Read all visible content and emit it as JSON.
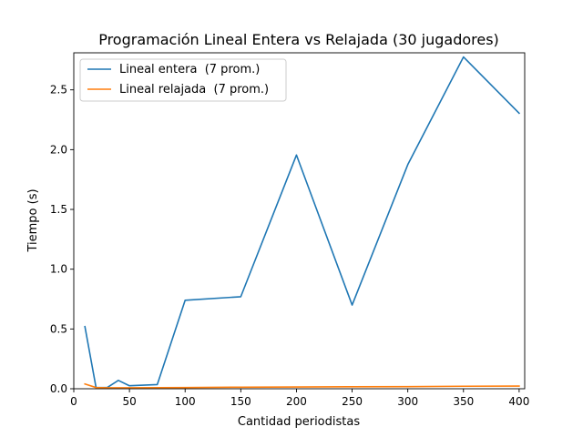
{
  "chart_data": {
    "type": "line",
    "title": "Programación Lineal Entera vs Relajada (30 jugadores)",
    "xlabel": "Cantidad periodistas",
    "ylabel": "Tiempo (s)",
    "xlim": [
      0,
      405
    ],
    "ylim": [
      0,
      2.81
    ],
    "xticks": [
      0,
      50,
      100,
      150,
      200,
      250,
      300,
      350,
      400
    ],
    "xtick_labels": [
      "0",
      "50",
      "100",
      "150",
      "200",
      "250",
      "300",
      "350",
      "400"
    ],
    "yticks": [
      0.0,
      0.5,
      1.0,
      1.5,
      2.0,
      2.5
    ],
    "ytick_labels": [
      "0.0",
      "0.5",
      "1.0",
      "1.5",
      "2.0",
      "2.5"
    ],
    "grid": false,
    "legend_position": "top-left",
    "x": [
      10,
      20,
      30,
      40,
      50,
      75,
      100,
      150,
      200,
      250,
      300,
      350,
      400
    ],
    "series": [
      {
        "name": "Lineal entera  (7 prom.)",
        "color": "#1f77b4",
        "values": [
          0.52,
          0.01,
          0.01,
          0.07,
          0.025,
          0.035,
          0.74,
          0.77,
          1.955,
          0.7,
          1.875,
          2.775,
          2.305
        ]
      },
      {
        "name": "Lineal relajada  (7 prom.)",
        "color": "#ff7f0e",
        "values": [
          0.04,
          0.01,
          0.008,
          0.008,
          0.008,
          0.009,
          0.01,
          0.013,
          0.015,
          0.017,
          0.018,
          0.021,
          0.022
        ]
      }
    ]
  }
}
